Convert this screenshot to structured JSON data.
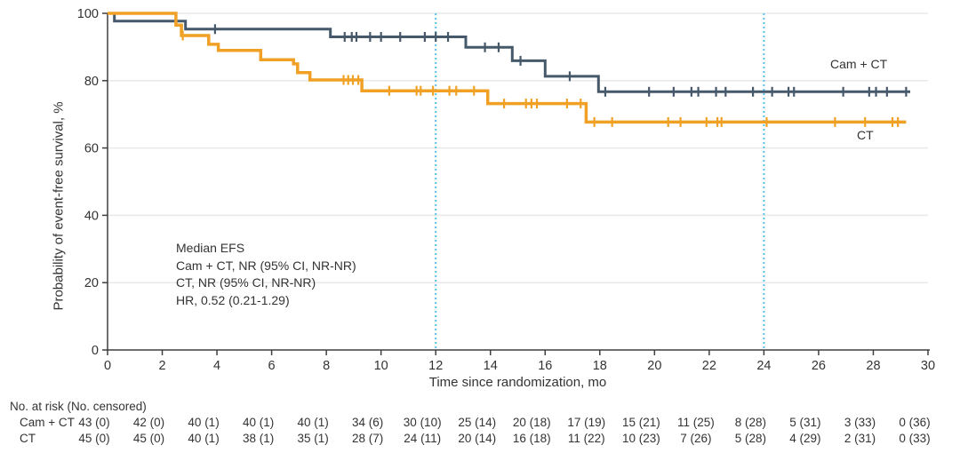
{
  "chart_data": {
    "type": "line",
    "subtype": "kaplan-meier-step",
    "title": "",
    "xlabel": "Time since randomization, mo",
    "ylabel": "Probability of event-free survival, %",
    "xlim": [
      0,
      30
    ],
    "ylim": [
      0,
      100
    ],
    "xticks": [
      0,
      2,
      4,
      6,
      8,
      10,
      12,
      14,
      16,
      18,
      20,
      22,
      24,
      26,
      28,
      30
    ],
    "yticks": [
      0,
      20,
      40,
      60,
      80,
      100
    ],
    "grid": "horizontal",
    "reference_lines_x": [
      12,
      24
    ],
    "annotation": {
      "lines": [
        "Median EFS",
        "Cam + CT, NR (95% CI, NR-NR)",
        "CT, NR (95% CI, NR-NR)",
        "HR, 0.52 (0.21-1.29)"
      ]
    },
    "series": [
      {
        "name": "Cam + CT",
        "color": "#46596B",
        "steps": [
          [
            0,
            100
          ],
          [
            0.25,
            100
          ],
          [
            0.25,
            97.7
          ],
          [
            2.85,
            97.7
          ],
          [
            2.85,
            95.3
          ],
          [
            8.15,
            95.3
          ],
          [
            8.15,
            93.0
          ],
          [
            13.1,
            93.0
          ],
          [
            13.1,
            89.9
          ],
          [
            14.8,
            89.9
          ],
          [
            14.8,
            85.9
          ],
          [
            16.0,
            85.9
          ],
          [
            16.0,
            81.3
          ],
          [
            17.95,
            81.3
          ],
          [
            17.95,
            76.7
          ],
          [
            29.35,
            76.7
          ]
        ],
        "censors": [
          [
            3.93,
            95.3
          ],
          [
            8.67,
            93
          ],
          [
            8.93,
            93
          ],
          [
            9.1,
            93
          ],
          [
            9.6,
            93
          ],
          [
            10.0,
            93
          ],
          [
            10.7,
            93
          ],
          [
            11.6,
            93
          ],
          [
            12.0,
            93
          ],
          [
            12.45,
            93
          ],
          [
            13.8,
            89.9
          ],
          [
            14.3,
            89.9
          ],
          [
            15.1,
            85.9
          ],
          [
            16.9,
            81.3
          ],
          [
            18.2,
            76.7
          ],
          [
            19.8,
            76.7
          ],
          [
            20.7,
            76.7
          ],
          [
            21.35,
            76.7
          ],
          [
            21.6,
            76.7
          ],
          [
            22.25,
            76.7
          ],
          [
            22.6,
            76.7
          ],
          [
            23.6,
            76.7
          ],
          [
            24.3,
            76.7
          ],
          [
            24.9,
            76.7
          ],
          [
            25.1,
            76.7
          ],
          [
            26.9,
            76.7
          ],
          [
            27.85,
            76.7
          ],
          [
            28.1,
            76.7
          ],
          [
            28.5,
            76.7
          ],
          [
            29.2,
            76.7
          ]
        ]
      },
      {
        "name": "CT",
        "color": "#F0A125",
        "steps": [
          [
            0,
            100
          ],
          [
            2.5,
            100
          ],
          [
            2.5,
            96.5
          ],
          [
            2.7,
            96.5
          ],
          [
            2.7,
            93.4
          ],
          [
            3.7,
            93.4
          ],
          [
            3.7,
            90.8
          ],
          [
            4.05,
            90.8
          ],
          [
            4.05,
            89.0
          ],
          [
            5.6,
            89.0
          ],
          [
            5.6,
            86.2
          ],
          [
            6.8,
            86.2
          ],
          [
            6.8,
            85.0
          ],
          [
            6.95,
            85.0
          ],
          [
            6.95,
            82.4
          ],
          [
            7.4,
            82.4
          ],
          [
            7.4,
            80.2
          ],
          [
            9.3,
            80.2
          ],
          [
            9.3,
            77.0
          ],
          [
            13.9,
            77.0
          ],
          [
            13.9,
            73.2
          ],
          [
            17.5,
            73.2
          ],
          [
            17.5,
            67.7
          ],
          [
            29.2,
            67.7
          ]
        ],
        "censors": [
          [
            2.75,
            93.4
          ],
          [
            8.63,
            80.2
          ],
          [
            8.8,
            80.2
          ],
          [
            8.97,
            80.2
          ],
          [
            9.17,
            80.2
          ],
          [
            10.3,
            77
          ],
          [
            11.3,
            77
          ],
          [
            11.45,
            77
          ],
          [
            11.9,
            77
          ],
          [
            12.5,
            77
          ],
          [
            12.75,
            77
          ],
          [
            13.4,
            77
          ],
          [
            14.5,
            73.2
          ],
          [
            15.3,
            73.2
          ],
          [
            15.5,
            73.2
          ],
          [
            15.7,
            73.2
          ],
          [
            16.8,
            73.2
          ],
          [
            17.3,
            73.2
          ],
          [
            17.8,
            67.7
          ],
          [
            18.45,
            67.7
          ],
          [
            20.5,
            67.7
          ],
          [
            20.95,
            67.7
          ],
          [
            21.9,
            67.7
          ],
          [
            22.3,
            67.7
          ],
          [
            22.45,
            67.7
          ],
          [
            24.1,
            67.7
          ],
          [
            26.6,
            67.7
          ],
          [
            27.7,
            67.7
          ],
          [
            28.7,
            67.7
          ],
          [
            28.9,
            67.7
          ]
        ]
      }
    ]
  },
  "curve_labels": {
    "camct": "Cam + CT",
    "ct": "CT"
  },
  "risk_table": {
    "header": "No. at risk (No. censored)",
    "times": [
      0,
      2,
      4,
      6,
      8,
      10,
      12,
      14,
      16,
      18,
      20,
      22,
      24,
      26,
      28,
      30
    ],
    "rows": [
      {
        "label": "Cam + CT",
        "values": [
          "43 (0)",
          "42 (0)",
          "40 (1)",
          "40 (1)",
          "40 (1)",
          "34 (6)",
          "30 (10)",
          "25 (14)",
          "20 (18)",
          "17 (19)",
          "15 (21)",
          "11 (25)",
          "8 (28)",
          "5 (31)",
          "3 (33)",
          "0 (36)"
        ]
      },
      {
        "label": "CT",
        "values": [
          "45 (0)",
          "45 (0)",
          "40 (1)",
          "38 (1)",
          "35 (1)",
          "28 (7)",
          "24 (11)",
          "20 (14)",
          "16 (18)",
          "11 (22)",
          "10 (23)",
          "7 (26)",
          "5 (28)",
          "4 (29)",
          "2 (31)",
          "0 (33)"
        ]
      }
    ]
  },
  "colors": {
    "camct_line": "#46596B",
    "ct_line": "#F0A125",
    "reference_line": "#56C2E9",
    "gridline": "#E9E9E9",
    "axis": "#3F3F3F",
    "text": "#333333"
  }
}
